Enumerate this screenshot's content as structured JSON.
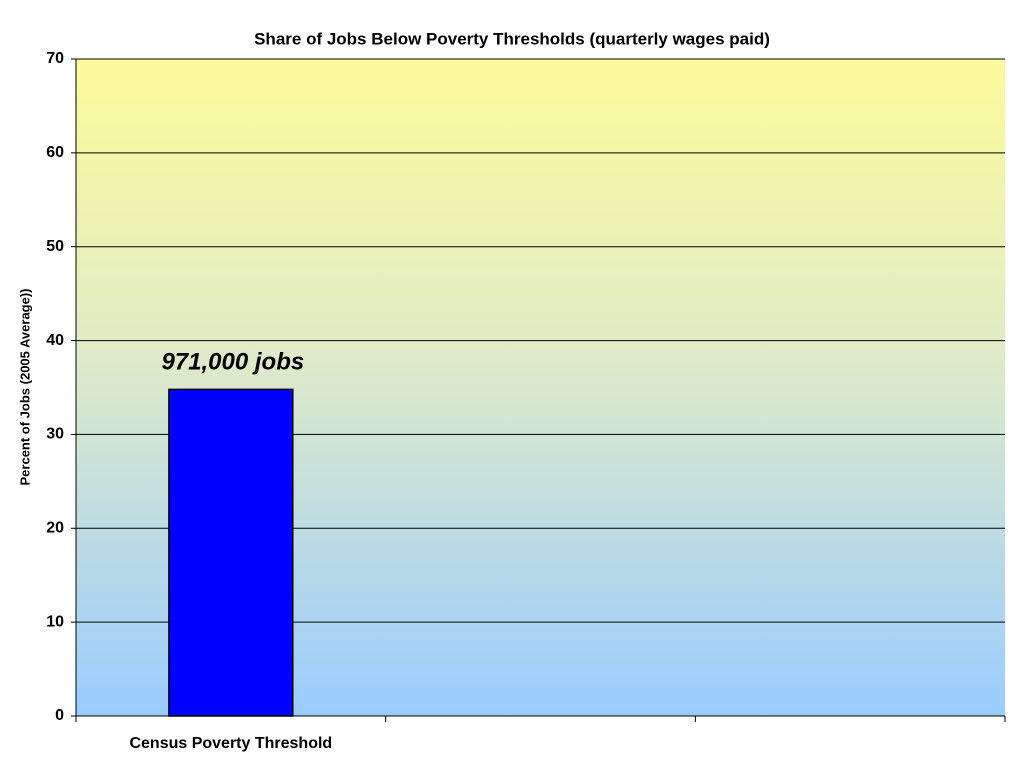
{
  "chart_data": {
    "type": "bar",
    "title": "Share of Jobs Below Poverty Thresholds (quarterly wages paid)",
    "y_label": "Percent of Jobs (2005 Average))",
    "categories": [
      "Census Poverty Threshold",
      null,
      null
    ],
    "values": [
      34.8,
      null,
      null
    ],
    "color": "#0000ff",
    "annotation": "971,000 jobs",
    "ylim": [
      0,
      70
    ],
    "yticks": [
      0,
      10,
      20,
      30,
      40,
      50,
      60,
      70
    ],
    "grid": true
  }
}
